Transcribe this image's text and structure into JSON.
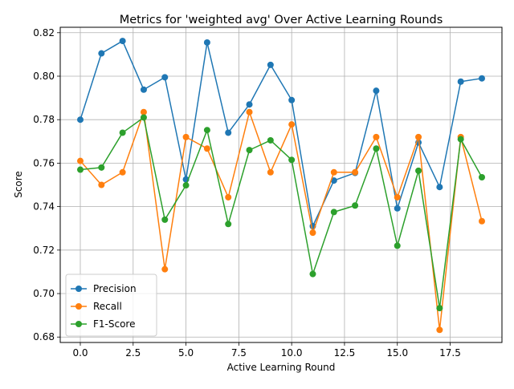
{
  "chart_data": {
    "type": "line",
    "title": "Metrics for 'weighted avg' Over Active Learning Rounds",
    "xlabel": "Active Learning Round",
    "ylabel": "Score",
    "xlim": [
      -0.95,
      19.95
    ],
    "ylim": [
      0.6775,
      0.8225
    ],
    "xticks": [
      0.0,
      2.5,
      5.0,
      7.5,
      10.0,
      12.5,
      15.0,
      17.5
    ],
    "xtick_labels": [
      "0.0",
      "2.5",
      "5.0",
      "7.5",
      "10.0",
      "12.5",
      "15.0",
      "17.5"
    ],
    "yticks": [
      0.68,
      0.7,
      0.72,
      0.74,
      0.76,
      0.78,
      0.8,
      0.82
    ],
    "ytick_labels": [
      "0.68",
      "0.70",
      "0.72",
      "0.74",
      "0.76",
      "0.78",
      "0.80",
      "0.82"
    ],
    "grid": true,
    "legend_position": "lower-left",
    "x": [
      0,
      1,
      2,
      3,
      4,
      5,
      6,
      7,
      8,
      9,
      10,
      11,
      12,
      13,
      14,
      15,
      16,
      17,
      18,
      19
    ],
    "series": [
      {
        "name": "Precision",
        "color": "#1f77b4",
        "values": [
          0.78,
          0.8105,
          0.8162,
          0.7938,
          0.7995,
          0.7525,
          0.8155,
          0.774,
          0.787,
          0.8052,
          0.789,
          0.731,
          0.752,
          0.7555,
          0.7933,
          0.7392,
          0.7695,
          0.749,
          0.7975,
          0.799
        ]
      },
      {
        "name": "Recall",
        "color": "#ff7f0e",
        "values": [
          0.761,
          0.75,
          0.7558,
          0.7835,
          0.7112,
          0.772,
          0.7667,
          0.7443,
          0.7835,
          0.7558,
          0.7778,
          0.728,
          0.7558,
          0.7558,
          0.772,
          0.7443,
          0.772,
          0.6833,
          0.772,
          0.7333
        ]
      },
      {
        "name": "F1-Score",
        "color": "#2ca02c",
        "values": [
          0.757,
          0.758,
          0.774,
          0.781,
          0.734,
          0.7498,
          0.7752,
          0.732,
          0.766,
          0.7705,
          0.7615,
          0.709,
          0.7375,
          0.7405,
          0.7667,
          0.722,
          0.7565,
          0.6933,
          0.771,
          0.7535
        ]
      }
    ]
  }
}
